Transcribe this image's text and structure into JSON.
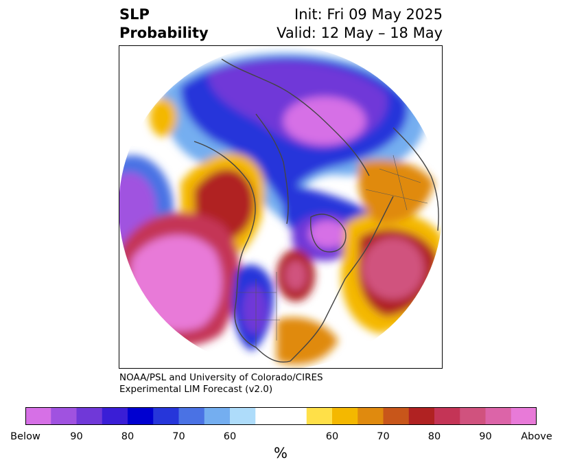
{
  "title": {
    "left_line1": "SLP",
    "left_line2": "Probability",
    "right_line1": "Init: Fri 09 May 2025",
    "right_line2": "Valid: 12 May – 18 May"
  },
  "credit": {
    "line1": "NOAA/PSL and University of Colorado/CIRES",
    "line2": "Experimental LIM Forecast (v2.0)"
  },
  "colorbar": {
    "unit": "%",
    "colors": [
      "#d670e6",
      "#a052e0",
      "#7038d8",
      "#3a1ed6",
      "#0000d0",
      "#2636da",
      "#4a72e4",
      "#74aef0",
      "#aedcfa",
      "#ffffff",
      "#ffe048",
      "#f4b800",
      "#e08a0e",
      "#c8561a",
      "#b02222",
      "#c43456",
      "#d0527e",
      "#dc64a8",
      "#e87ad8"
    ],
    "ticks": [
      {
        "label": "Below",
        "index": 0
      },
      {
        "label": "90",
        "index": 2
      },
      {
        "label": "80",
        "index": 4
      },
      {
        "label": "70",
        "index": 6
      },
      {
        "label": "60",
        "index": 8
      },
      {
        "label": "60",
        "index": 12
      },
      {
        "label": "70",
        "index": 14
      },
      {
        "label": "80",
        "index": 16
      },
      {
        "label": "90",
        "index": 18
      },
      {
        "label": "Above",
        "index": 20
      }
    ]
  },
  "map": {
    "projection": "north-polar-stereographic",
    "variable": "sea-level-pressure-probability",
    "coastline_color": "#444444"
  }
}
